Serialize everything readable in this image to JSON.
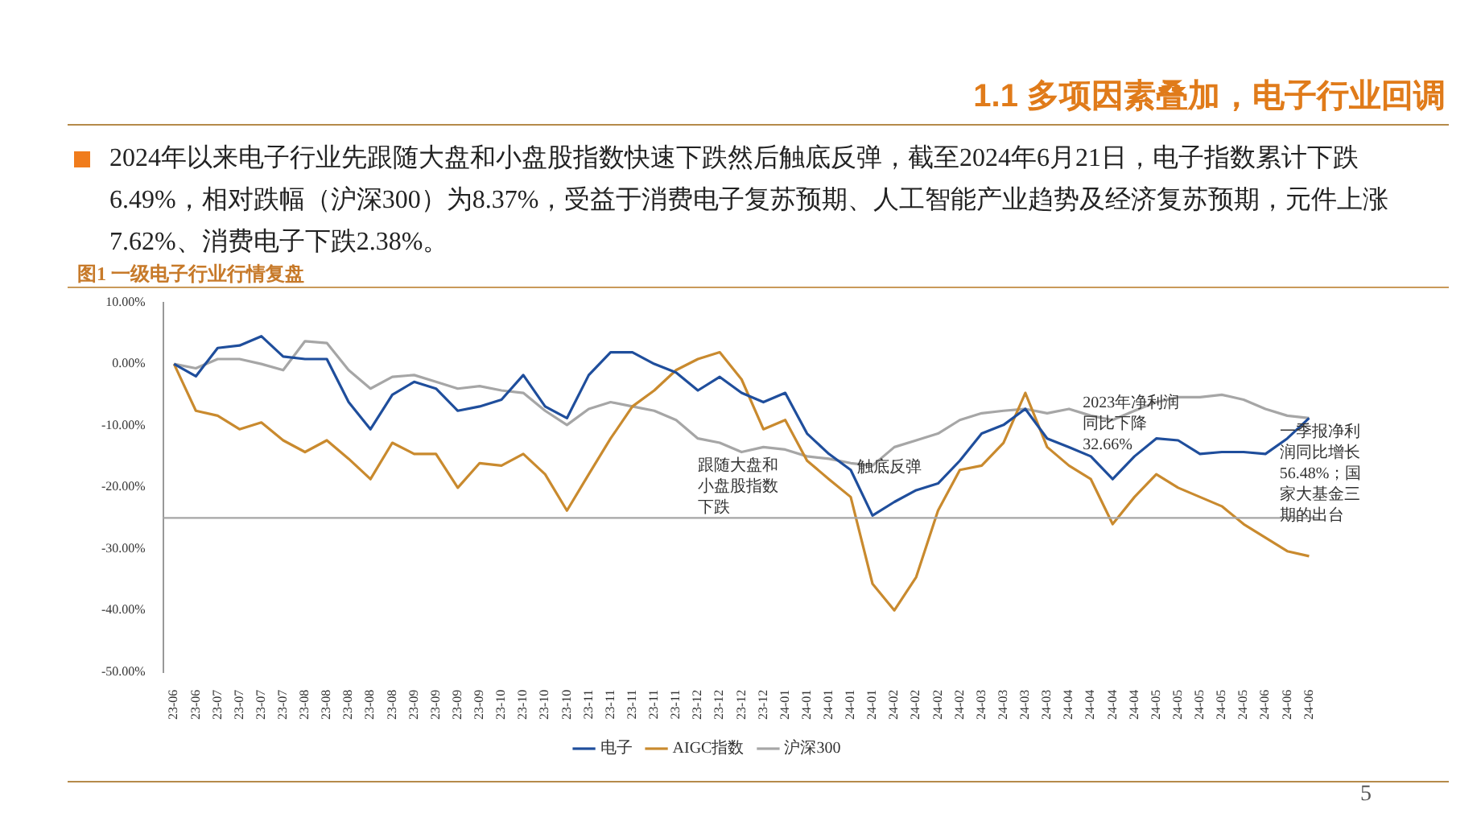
{
  "chart_data": {
    "type": "line",
    "title": "1.1 多项因素叠加，电子行业回调",
    "subtitle": "2024年以来电子行业先跟随大盘和小盘股指数快速下跌然后触底反弹，截至2024年6月21日，电子指数累计下跌6.49%，相对跌幅（沪深300）为8.37%，受益于消费电子复苏预期、人工智能产业趋势及经济复苏预期，元件上涨7.62%、消费电子下跌2.38%。",
    "categories": [
      "23-06",
      "23-06",
      "23-07",
      "23-07",
      "23-07",
      "23-07",
      "23-08",
      "23-08",
      "23-08",
      "23-08",
      "23-08",
      "23-09",
      "23-09",
      "23-09",
      "23-09",
      "23-10",
      "23-10",
      "23-10",
      "23-10",
      "23-11",
      "23-11",
      "23-11",
      "23-11",
      "23-11",
      "23-12",
      "23-12",
      "23-12",
      "23-12",
      "24-01",
      "24-01",
      "24-01",
      "24-01",
      "24-01",
      "24-02",
      "24-02",
      "24-02",
      "24-02",
      "24-03",
      "24-03",
      "24-03",
      "24-03",
      "24-04",
      "24-04",
      "24-04",
      "24-04",
      "24-05",
      "24-05",
      "24-05",
      "24-05",
      "24-05",
      "24-06",
      "24-06",
      "24-06"
    ],
    "series": [
      {
        "name": "电子",
        "color": "#1f4e9c",
        "values": [
          0,
          -2,
          2.6,
          3,
          4.5,
          1.2,
          0.8,
          0.8,
          -6.2,
          -10.6,
          -5,
          -2.9,
          -4,
          -7.6,
          -6.9,
          -5.8,
          -1.8,
          -6.9,
          -8.8,
          -1.8,
          1.9,
          1.9,
          0,
          -1.4,
          -4.3,
          -2.1,
          -4.7,
          -6.2,
          -4.7,
          -11.3,
          -14.6,
          -17.2,
          -24.6,
          -22.4,
          -20.5,
          -19.4,
          -15.7,
          -11.3,
          -9.9,
          -7.3,
          -12.1,
          -13.5,
          -15,
          -18.7,
          -15,
          -12.1,
          -12.4,
          -14.6,
          -14.3,
          -14.3,
          -14.6,
          -12.1,
          -8.8
        ]
      },
      {
        "name": "AIGC指数",
        "color": "#c98a2e",
        "values": [
          0,
          -7.6,
          -8.4,
          -10.6,
          -9.5,
          -12.4,
          -14.3,
          -12.4,
          -15.4,
          -18.7,
          -12.8,
          -14.6,
          -14.6,
          -20.1,
          -16.1,
          -16.5,
          -14.6,
          -17.9,
          -23.8,
          -17.9,
          -12.1,
          -6.9,
          -4.3,
          -1,
          0.8,
          1.9,
          -2.5,
          -10.6,
          -9.1,
          -15.7,
          -18.7,
          -21.6,
          -35.7,
          -40,
          -34.6,
          -23.8,
          -17.2,
          -16.5,
          -12.8,
          -4.7,
          -13.5,
          -16.5,
          -18.7,
          -26,
          -21.6,
          -17.9,
          -20.1,
          -21.6,
          -23.1,
          -26,
          -28.2,
          -30.4,
          -31.2
        ]
      },
      {
        "name": "沪深300",
        "color": "#a6a6a6",
        "values": [
          0,
          -0.7,
          0.8,
          0.8,
          0,
          -1,
          3.7,
          3.4,
          -1,
          -4,
          -2.1,
          -1.8,
          -2.9,
          -4,
          -3.6,
          -4.3,
          -4.7,
          -7.6,
          -9.9,
          -7.3,
          -6.2,
          -6.9,
          -7.6,
          -9.1,
          -12.1,
          -12.8,
          -14.3,
          -13.5,
          -13.9,
          -15,
          -15.4,
          -16.1,
          -16.5,
          -13.5,
          -12.4,
          -11.3,
          -9.1,
          -8,
          -7.6,
          -7.3,
          -8,
          -7.3,
          -8.4,
          -9.1,
          -7.6,
          -6.2,
          -5.4,
          -5.4,
          -5,
          -5.8,
          -7.3,
          -8.4,
          -8.8
        ]
      }
    ],
    "ylim": [
      -50,
      10
    ],
    "yticks": [
      {
        "value": -50,
        "label": "-50.00%"
      },
      {
        "value": -40,
        "label": "-40.00%"
      },
      {
        "value": -30,
        "label": "-30.00%"
      },
      {
        "value": -20,
        "label": "-20.00%"
      },
      {
        "value": -10,
        "label": "-10.00%"
      },
      {
        "value": 0,
        "label": "0.00%"
      },
      {
        "value": 10,
        "label": "10.00%"
      }
    ],
    "ref_lines": [
      {
        "axis": "y",
        "value": -25,
        "color": "#a6a6a6"
      }
    ],
    "grid": false,
    "legend": "bottom",
    "marker": "none",
    "annotations": [
      "图1 一级电子行业行情复盘",
      "跟随大盘和小盘股指数下跌",
      "触底反弹",
      "2023年净利润同比下降32.66%",
      "一季报净利润同比增长56.48%；国家大基金三期的出台",
      "5"
    ]
  }
}
